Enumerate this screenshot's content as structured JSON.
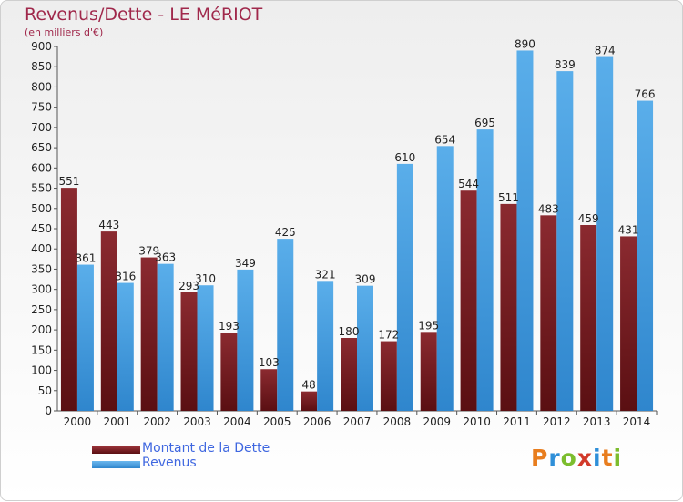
{
  "header": {
    "title": "Revenus/Dette - LE MéRIOT",
    "subtitle": "(en milliers d'€)"
  },
  "chart_data": {
    "type": "bar",
    "categories": [
      "2000",
      "2001",
      "2002",
      "2003",
      "2004",
      "2005",
      "2006",
      "2007",
      "2008",
      "2009",
      "2010",
      "2011",
      "2012",
      "2013",
      "2014"
    ],
    "series": [
      {
        "name": "Montant de la Dette",
        "color": "#7a1f24",
        "values": [
          551,
          443,
          379,
          293,
          193,
          103,
          48,
          180,
          172,
          195,
          544,
          511,
          483,
          459,
          431
        ]
      },
      {
        "name": "Revenus",
        "color": "#4ea2e4",
        "values": [
          361,
          316,
          363,
          310,
          349,
          425,
          321,
          309,
          610,
          654,
          695,
          890,
          839,
          874,
          766
        ]
      }
    ],
    "ylim": [
      0,
      900
    ],
    "yticks": [
      0,
      50,
      100,
      150,
      200,
      250,
      300,
      350,
      400,
      450,
      500,
      550,
      600,
      650,
      700,
      750,
      800,
      850,
      900
    ],
    "grid": false,
    "legend_position": "bottom-left"
  },
  "legend": {
    "items": [
      {
        "label": "Montant de la Dette",
        "color": "#7a1f24"
      },
      {
        "label": "Revenus",
        "color": "#4ea2e4"
      }
    ]
  },
  "logo": {
    "letters": [
      "P",
      "r",
      "o",
      "x",
      "i",
      "t",
      "i"
    ],
    "colors": [
      "#e87d1e",
      "#2f8fd8",
      "#7cbd2e",
      "#d23a2a",
      "#2f8fd8",
      "#e87d1e",
      "#7cbd2e"
    ]
  }
}
